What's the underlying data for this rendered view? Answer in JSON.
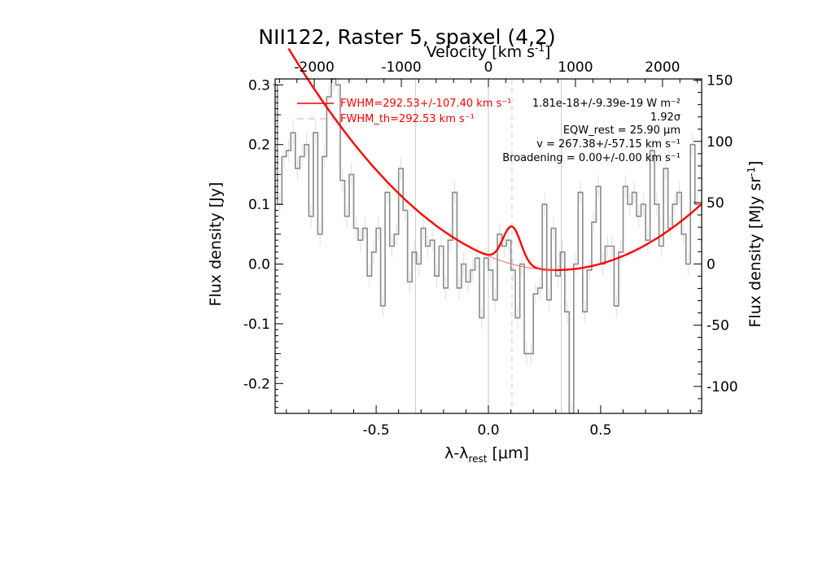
{
  "chart_data": {
    "type": "line",
    "title": "NII122, Raster 5, spaxel (4,2)",
    "xlabel": "λ-λ_rest [μm]",
    "xlabel_main": "λ-λ",
    "xlabel_sub": "rest",
    "xlabel_unit": " [μm]",
    "ylabel": "Flux density [Jy]",
    "top_xlabel": "Velocity [km s⁻¹]",
    "top_xlabel_main": "Velocity [km s",
    "top_xlabel_sup": "-1",
    "top_xlabel_end": "]",
    "right_ylabel": "Flux density [MJy sr⁻¹]",
    "right_ylabel_main": "Flux density [MJy sr",
    "right_ylabel_sup": "-1",
    "right_ylabel_end": "]",
    "xlim": [
      -0.95,
      0.95
    ],
    "ylim": [
      -0.25,
      0.31
    ],
    "top_xlim": [
      -2450,
      2450
    ],
    "right_ylim": [
      -122,
      151
    ],
    "xticks": [
      -0.5,
      0.0,
      0.5
    ],
    "xtick_labels": [
      "-0.5",
      "0.0",
      "0.5"
    ],
    "yticks": [
      -0.2,
      -0.1,
      0.0,
      0.1,
      0.2,
      0.3
    ],
    "ytick_labels": [
      "-0.2",
      "-0.1",
      "0.0",
      "0.1",
      "0.2",
      "0.3"
    ],
    "top_xticks": [
      -2000,
      -1000,
      0,
      1000,
      2000
    ],
    "top_xtick_labels": [
      "-2000",
      "-1000",
      "0",
      "1000",
      "2000"
    ],
    "right_yticks": [
      -100,
      -50,
      0,
      50,
      100,
      150
    ],
    "right_ytick_labels": [
      "-100",
      "-50",
      "0",
      "50",
      "100",
      "150"
    ],
    "vertical_lines": [
      -0.325,
      0.0,
      0.325
    ],
    "line_center": 0.105,
    "legend": {
      "position": "top-left",
      "entries": [
        {
          "label": "FWHM=292.53+/-107.40 km s⁻¹",
          "style": "solid"
        },
        {
          "label": "FWHM_th=292.53 km s⁻¹",
          "style": "dashed"
        }
      ]
    },
    "annotations": [
      "1.81e-18+/-9.39e-19 W m⁻²",
      "1.92σ",
      "EQW_rest = 25.90 μm",
      "v = 267.38+/-57.15 km s⁻¹",
      "Broadening = 0.00+/-0.00 km s⁻¹"
    ],
    "series": [
      {
        "type": "step",
        "color": "#888888",
        "x": [
          -0.95,
          -0.93,
          -0.91,
          -0.89,
          -0.87,
          -0.85,
          -0.83,
          -0.81,
          -0.79,
          -0.77,
          -0.75,
          -0.73,
          -0.71,
          -0.69,
          -0.67,
          -0.65,
          -0.63,
          -0.61,
          -0.59,
          -0.57,
          -0.55,
          -0.53,
          -0.51,
          -0.49,
          -0.47,
          -0.45,
          -0.43,
          -0.41,
          -0.39,
          -0.37,
          -0.35,
          -0.33,
          -0.31,
          -0.29,
          -0.27,
          -0.25,
          -0.23,
          -0.21,
          -0.19,
          -0.17,
          -0.15,
          -0.13,
          -0.11,
          -0.09,
          -0.07,
          -0.05,
          -0.03,
          -0.01,
          0.01,
          0.03,
          0.05,
          0.07,
          0.09,
          0.11,
          0.13,
          0.15,
          0.17,
          0.19,
          0.21,
          0.23,
          0.25,
          0.27,
          0.29,
          0.31,
          0.33,
          0.35,
          0.37,
          0.39,
          0.41,
          0.43,
          0.45,
          0.47,
          0.49,
          0.51,
          0.53,
          0.55,
          0.57,
          0.59,
          0.61,
          0.63,
          0.65,
          0.67,
          0.69,
          0.71,
          0.73,
          0.75,
          0.77,
          0.79,
          0.81,
          0.83,
          0.85,
          0.87,
          0.89,
          0.91,
          0.93
        ],
        "y": [
          0.3,
          0.1,
          0.18,
          0.19,
          0.22,
          0.16,
          0.18,
          0.2,
          0.08,
          0.22,
          0.05,
          0.18,
          0.28,
          0.31,
          0.3,
          0.14,
          0.08,
          0.15,
          0.06,
          0.04,
          0.06,
          -0.02,
          0.02,
          0.06,
          -0.07,
          0.12,
          0.03,
          0.05,
          0.16,
          0.09,
          -0.03,
          0.02,
          0.0,
          0.06,
          0.03,
          0.04,
          -0.02,
          0.03,
          -0.04,
          0.04,
          0.12,
          -0.04,
          0.0,
          -0.03,
          -0.01,
          0.01,
          -0.09,
          0.01,
          -0.01,
          -0.06,
          0.05,
          0.03,
          0.04,
          -0.01,
          -0.09,
          0.0,
          -0.15,
          -0.15,
          -0.05,
          -0.04,
          0.1,
          -0.06,
          0.06,
          -0.02,
          0.02,
          -0.08,
          -0.25,
          0.0,
          0.12,
          -0.08,
          -0.01,
          0.07,
          0.13,
          0.0,
          0.03,
          0.03,
          -0.07,
          0.02,
          0.13,
          0.1,
          0.12,
          0.08,
          0.1,
          0.04,
          0.19,
          0.1,
          0.03,
          0.16,
          0.06,
          0.1,
          0.12,
          0.05,
          0.0,
          0.2,
          0.1
        ]
      },
      {
        "type": "fit",
        "color": "#ff0000",
        "baseline": {
          "x0": 0.3,
          "c0": -0.01,
          "a": 0.262
        },
        "gaussian": {
          "amp": 0.063,
          "center": 0.105,
          "sigma": 0.04
        },
        "x_range": [
          -0.89,
          0.95
        ]
      },
      {
        "type": "baseline",
        "color": "#ff0000",
        "x_range": [
          0.0,
          0.3
        ]
      }
    ]
  }
}
